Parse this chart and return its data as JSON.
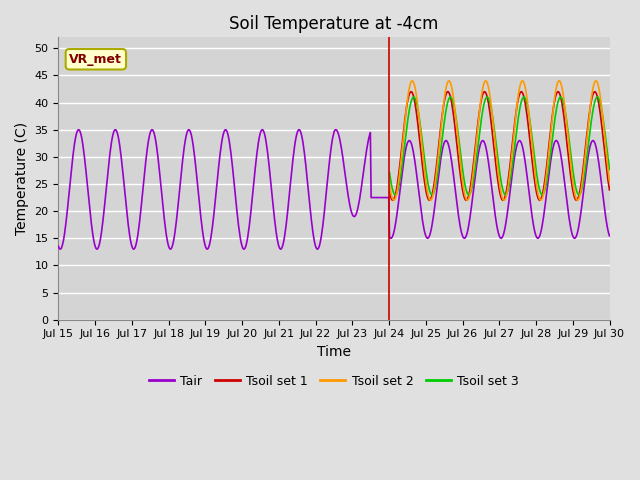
{
  "title": "Soil Temperature at -4cm",
  "xlabel": "Time",
  "ylabel": "Temperature (C)",
  "ylim": [
    0,
    52
  ],
  "yticks": [
    0,
    5,
    10,
    15,
    20,
    25,
    30,
    35,
    40,
    45,
    50
  ],
  "x_tick_positions": [
    0,
    1,
    2,
    3,
    4,
    5,
    6,
    7,
    8,
    9,
    10,
    11,
    12,
    13,
    14,
    15
  ],
  "x_labels": [
    "Jul 15",
    "Jul 16",
    "Jul 17",
    "Jul 18",
    "Jul 19",
    "Jul 20",
    "Jul 21",
    "Jul 22",
    "Jul 23",
    "Jul 24",
    "Jul 25",
    "Jul 26",
    "Jul 27",
    "Jul 28",
    "Jul 29",
    "Jul 30"
  ],
  "fig_bg_color": "#e0e0e0",
  "ax_bg_color": "#d4d4d4",
  "grid_color": "#ffffff",
  "annotation_label": "VR_met",
  "annotation_color": "#800000",
  "annotation_bg": "#ffffcc",
  "annotation_edge": "#aaaa00",
  "line_colors": {
    "Tair": "#9900cc",
    "Tsoil1": "#cc0000",
    "Tsoil2": "#ff9900",
    "Tsoil3": "#00cc00"
  },
  "legend_labels": [
    "Tair",
    "Tsoil set 1",
    "Tsoil set 2",
    "Tsoil set 3"
  ],
  "vline_day": 9.0,
  "tsoil_start_day": 9.0,
  "title_fontsize": 12,
  "label_fontsize": 10,
  "tick_fontsize": 8
}
